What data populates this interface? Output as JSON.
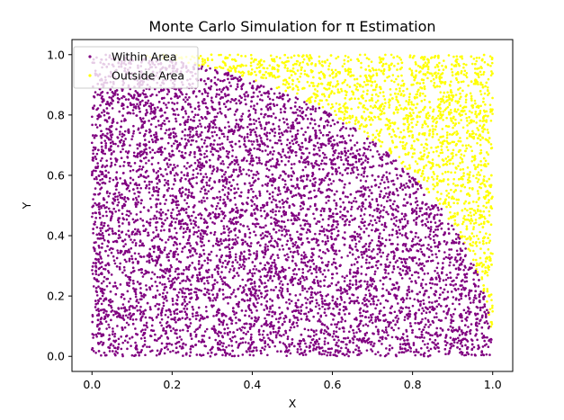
{
  "chart_data": {
    "type": "scatter",
    "title": "Monte Carlo Simulation for π Estimation",
    "xlabel": "X",
    "ylabel": "Y",
    "xlim": [
      -0.05,
      1.05
    ],
    "ylim": [
      -0.05,
      1.05
    ],
    "xticks": [
      0.0,
      0.2,
      0.4,
      0.6,
      0.8,
      1.0
    ],
    "yticks": [
      0.0,
      0.2,
      0.4,
      0.6,
      0.8,
      1.0
    ],
    "xtick_labels": [
      "0.0",
      "0.2",
      "0.4",
      "0.6",
      "0.8",
      "1.0"
    ],
    "ytick_labels": [
      "0.0",
      "0.2",
      "0.4",
      "0.6",
      "0.8",
      "1.0"
    ],
    "grid": false,
    "legend_position": "upper-left",
    "point_distribution": "uniform random points in the unit square [0,1]×[0,1]; points with x²+y²≤1 are Within Area, others Outside Area",
    "approx_point_count": 10000,
    "series": [
      {
        "name": "Within Area",
        "color": "#800080",
        "region": "x^2 + y^2 <= 1"
      },
      {
        "name": "Outside Area",
        "color": "#ffff00",
        "region": "x^2 + y^2 > 1"
      }
    ]
  }
}
